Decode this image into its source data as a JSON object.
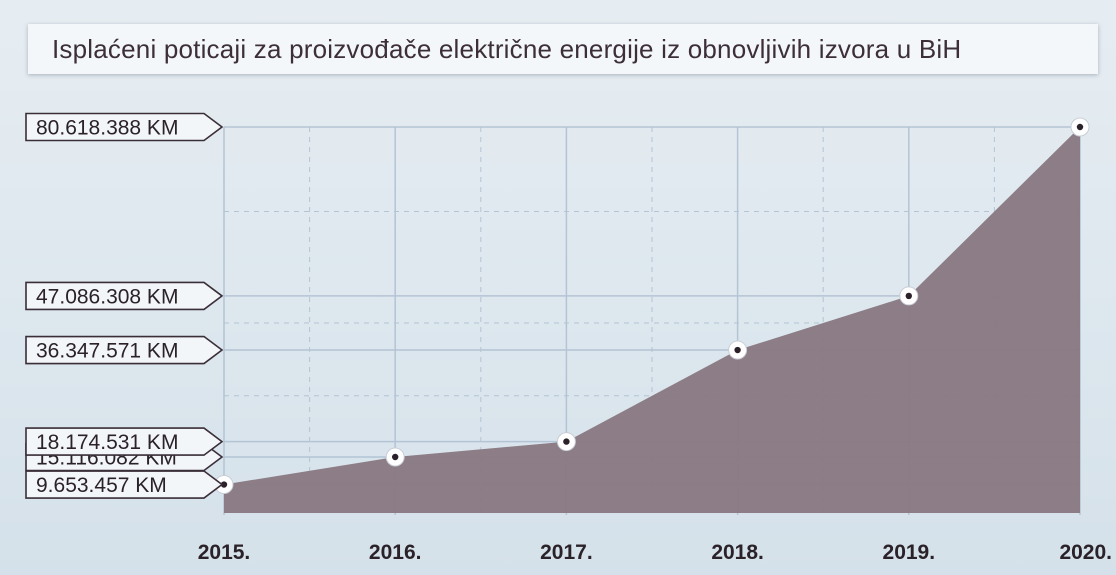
{
  "title": "Isplaćeni poticaji za proizvođače električne energije iz obnovljivih izvora u BiH",
  "chart_data": {
    "type": "area",
    "title": "Isplaćeni poticaji za proizvođače električne energije iz obnovljivih izvora u BiH",
    "x": [
      "2015.",
      "2016.",
      "2017.",
      "2018.",
      "2019.",
      "2020."
    ],
    "series": [
      {
        "values": [
          9653457,
          15116082,
          18174531,
          36347571,
          47086308,
          80618388
        ],
        "labels": [
          "9.653.457 KM",
          "15.116.082 KM",
          "18.174.531 KM",
          "36.347.571 KM",
          "47.086.308 KM",
          "80.618.388 KM"
        ]
      }
    ],
    "ylim": [
      4000000,
      80618388
    ],
    "grid": true,
    "colors": {
      "area": "#8a7a84",
      "grid": "#b4c4d4",
      "label_bg": "#f3f6f8",
      "label_border": "#3a2e38"
    }
  }
}
